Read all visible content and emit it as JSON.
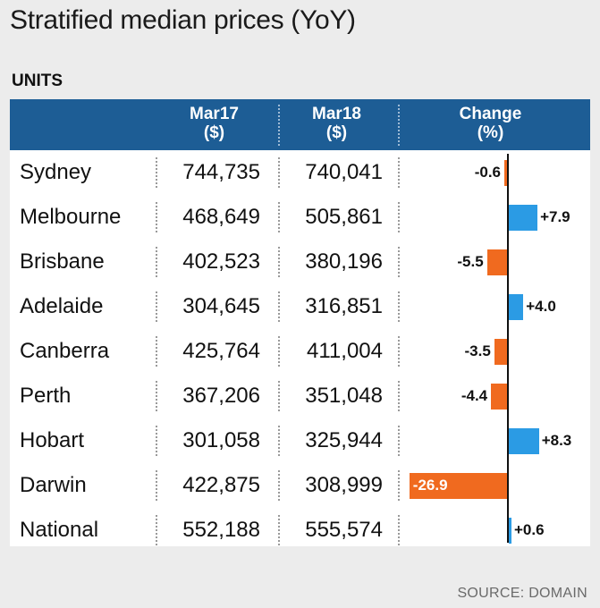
{
  "title": "Stratified median prices (YoY)",
  "section_label": "UNITS",
  "columns": {
    "mar17_line1": "Mar17",
    "mar17_line2": "($)",
    "mar18_line1": "Mar18",
    "mar18_line2": "($)",
    "change_line1": "Change",
    "change_line2": "(%)"
  },
  "source": "SOURCE: DOMAIN",
  "colors": {
    "header_bg": "#1d5d95",
    "positive": "#2b9be4",
    "negative": "#f06a1f",
    "background": "#ececec"
  },
  "chart_data": {
    "type": "table",
    "title": "Stratified median prices (YoY)",
    "subtitle": "UNITS",
    "columns": [
      "Mar17 ($)",
      "Mar18 ($)",
      "Change (%)"
    ],
    "rows": [
      {
        "city": "Sydney",
        "mar17": "744,735",
        "mar18": "740,041",
        "change": -0.6,
        "change_label": "-0.6"
      },
      {
        "city": "Melbourne",
        "mar17": "468,649",
        "mar18": "505,861",
        "change": 7.9,
        "change_label": "+7.9"
      },
      {
        "city": "Brisbane",
        "mar17": "402,523",
        "mar18": "380,196",
        "change": -5.5,
        "change_label": "-5.5"
      },
      {
        "city": "Adelaide",
        "mar17": "304,645",
        "mar18": "316,851",
        "change": 4.0,
        "change_label": "+4.0"
      },
      {
        "city": "Canberra",
        "mar17": "425,764",
        "mar18": "411,004",
        "change": -3.5,
        "change_label": "-3.5"
      },
      {
        "city": "Perth",
        "mar17": "367,206",
        "mar18": "351,048",
        "change": -4.4,
        "change_label": "-4.4"
      },
      {
        "city": "Hobart",
        "mar17": "301,058",
        "mar18": "325,944",
        "change": 8.3,
        "change_label": "+8.3"
      },
      {
        "city": "Darwin",
        "mar17": "422,875",
        "mar18": "308,999",
        "change": -26.9,
        "change_label": "-26.9"
      },
      {
        "city": "National",
        "mar17": "552,188",
        "mar18": "555,574",
        "change": 0.6,
        "change_label": "+0.6"
      }
    ],
    "change_range": [
      -26.9,
      8.3
    ]
  }
}
